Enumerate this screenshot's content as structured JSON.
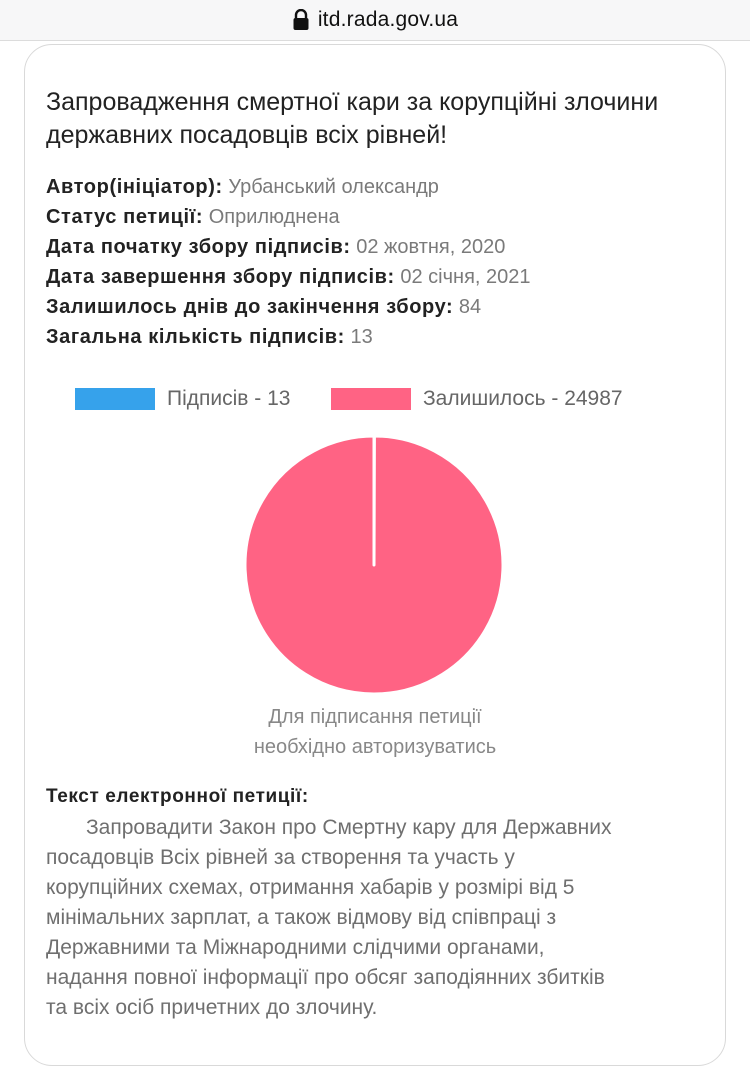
{
  "browser": {
    "domain": "itd.rada.gov.ua"
  },
  "petition": {
    "title": "Запровадження смертної кари за корупційні злочини державних посадовців всіх рівней!",
    "meta": [
      {
        "key": "Автор(ініціатор):",
        "value": "Урбанський олександр"
      },
      {
        "key": "Статус петиції:",
        "value": "Оприлюднена"
      },
      {
        "key": "Дата початку збору підписів:",
        "value": "02 жовтня, 2020"
      },
      {
        "key": "Дата завершення збору підписів:",
        "value": "02 січня, 2021"
      },
      {
        "key": "Залишилось днів до закінчення збору:",
        "value": "84"
      },
      {
        "key": "Загальна кількість підписів:",
        "value": "13"
      }
    ],
    "auth_note_line1": "Для підписання петиції",
    "auth_note_line2": "необхідно авторизуватись",
    "text_heading": "Текст електронної петиції:",
    "text_lines": [
      "Запровадити Закон про Смертну кару для Державних",
      "посадовців Всіх рівней за створення та участь у",
      "корупційних схемах, отримання хабарів у розмірі від 5",
      "мінімальних зарплат, а також відмову від співпраці з",
      "Державними та Міжнародними слідчими органами,",
      "надання повної інформації про обсяг заподіянних збитків",
      "та всіх осіб причетних до злочину."
    ]
  },
  "chart_data": {
    "type": "pie",
    "slices": [
      {
        "label": "Підписів - 13",
        "value": 13,
        "color": "#36a2eb"
      },
      {
        "label": "Залишилось - 24987",
        "value": 24987,
        "color": "#ff6384"
      }
    ]
  }
}
